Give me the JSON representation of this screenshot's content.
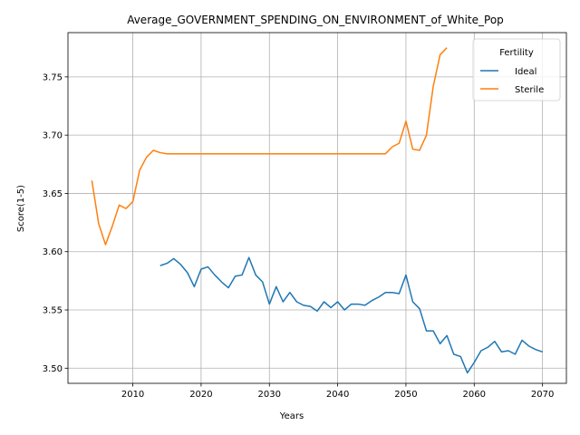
{
  "chart_data": {
    "type": "line",
    "title": "Average_GOVERNMENT_SPENDING_ON_ENVIRONMENT_of_White_Pop",
    "xlabel": "Years",
    "ylabel": "Score(1-5)",
    "xlim": [
      2000.5,
      2073.5
    ],
    "ylim": [
      3.487,
      3.788
    ],
    "xticks": [
      2010,
      2020,
      2030,
      2040,
      2050,
      2060,
      2070
    ],
    "yticks": [
      3.5,
      3.55,
      3.6,
      3.65,
      3.7,
      3.75
    ],
    "ytick_labels": [
      "3.50",
      "3.55",
      "3.60",
      "3.65",
      "3.70",
      "3.75"
    ],
    "grid": true,
    "legend": {
      "title": "Fertility",
      "placement": "top-right"
    },
    "series": [
      {
        "name": "Ideal",
        "color": "#1f77b4",
        "x": [
          2014,
          2015,
          2016,
          2017,
          2018,
          2019,
          2020,
          2021,
          2022,
          2023,
          2024,
          2025,
          2026,
          2027,
          2028,
          2029,
          2030,
          2031,
          2032,
          2033,
          2034,
          2035,
          2036,
          2037,
          2038,
          2039,
          2040,
          2041,
          2042,
          2043,
          2044,
          2045,
          2046,
          2047,
          2048,
          2049,
          2050,
          2051,
          2052,
          2053,
          2054,
          2055,
          2056,
          2057,
          2058,
          2059,
          2060,
          2061,
          2062,
          2063,
          2064,
          2065,
          2066,
          2067,
          2068,
          2069,
          2070
        ],
        "y": [
          3.588,
          3.59,
          3.594,
          3.589,
          3.582,
          3.57,
          3.585,
          3.587,
          3.58,
          3.574,
          3.569,
          3.579,
          3.58,
          3.595,
          3.58,
          3.574,
          3.555,
          3.57,
          3.557,
          3.565,
          3.557,
          3.554,
          3.553,
          3.549,
          3.557,
          3.552,
          3.557,
          3.55,
          3.555,
          3.555,
          3.554,
          3.558,
          3.561,
          3.565,
          3.565,
          3.564,
          3.58,
          3.557,
          3.551,
          3.532,
          3.532,
          3.521,
          3.528,
          3.512,
          3.51,
          3.496,
          3.505,
          3.515,
          3.518,
          3.523,
          3.514,
          3.515,
          3.512,
          3.524,
          3.519,
          3.516,
          3.514
        ]
      },
      {
        "name": "Sterile",
        "color": "#ff7f0e",
        "x": [
          2004,
          2005,
          2006,
          2007,
          2008,
          2009,
          2010,
          2011,
          2012,
          2013,
          2014,
          2015,
          2016,
          2017,
          2018,
          2019,
          2020,
          2021,
          2022,
          2023,
          2024,
          2025,
          2026,
          2027,
          2028,
          2029,
          2030,
          2031,
          2032,
          2033,
          2034,
          2035,
          2036,
          2037,
          2038,
          2039,
          2040,
          2041,
          2042,
          2043,
          2044,
          2045,
          2046,
          2047,
          2048,
          2049,
          2050,
          2051,
          2052,
          2053,
          2054,
          2055,
          2056
        ],
        "y": [
          3.661,
          3.624,
          3.606,
          3.622,
          3.64,
          3.637,
          3.643,
          3.67,
          3.681,
          3.687,
          3.685,
          3.684,
          3.684,
          3.684,
          3.684,
          3.684,
          3.684,
          3.684,
          3.684,
          3.684,
          3.684,
          3.684,
          3.684,
          3.684,
          3.684,
          3.684,
          3.684,
          3.684,
          3.684,
          3.684,
          3.684,
          3.684,
          3.684,
          3.684,
          3.684,
          3.684,
          3.684,
          3.684,
          3.684,
          3.684,
          3.684,
          3.684,
          3.684,
          3.684,
          3.69,
          3.693,
          3.712,
          3.688,
          3.687,
          3.7,
          3.742,
          3.769,
          3.775
        ]
      }
    ]
  }
}
